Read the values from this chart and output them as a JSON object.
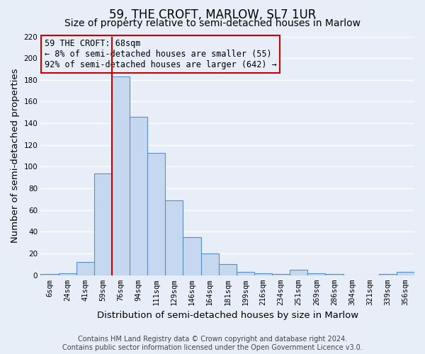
{
  "title": "59, THE CROFT, MARLOW, SL7 1UR",
  "subtitle": "Size of property relative to semi-detached houses in Marlow",
  "xlabel": "Distribution of semi-detached houses by size in Marlow",
  "ylabel": "Number of semi-detached properties",
  "bar_labels": [
    "6sqm",
    "24sqm",
    "41sqm",
    "59sqm",
    "76sqm",
    "94sqm",
    "111sqm",
    "129sqm",
    "146sqm",
    "164sqm",
    "181sqm",
    "199sqm",
    "216sqm",
    "234sqm",
    "251sqm",
    "269sqm",
    "286sqm",
    "304sqm",
    "321sqm",
    "339sqm",
    "356sqm"
  ],
  "bar_values": [
    1,
    2,
    12,
    94,
    183,
    146,
    113,
    69,
    35,
    20,
    10,
    3,
    2,
    1,
    5,
    2,
    1,
    0,
    0,
    1,
    3
  ],
  "bar_color": "#c5d8f0",
  "bar_edge_color": "#5b8ec4",
  "vline_x_index": 3.5,
  "vline_color": "#cc0000",
  "annotation_line1": "59 THE CROFT: 68sqm",
  "annotation_line2": "← 8% of semi-detached houses are smaller (55)",
  "annotation_line3": "92% of semi-detached houses are larger (642) →",
  "annotation_box_color": "#cc0000",
  "ylim": [
    0,
    220
  ],
  "yticks": [
    0,
    20,
    40,
    60,
    80,
    100,
    120,
    140,
    160,
    180,
    200,
    220
  ],
  "footer_line1": "Contains HM Land Registry data © Crown copyright and database right 2024.",
  "footer_line2": "Contains public sector information licensed under the Open Government Licence v3.0.",
  "bg_color": "#e8eef7",
  "grid_color": "#ffffff",
  "title_fontsize": 12,
  "subtitle_fontsize": 10,
  "axis_label_fontsize": 9.5,
  "tick_fontsize": 7.5,
  "annotation_fontsize": 8.5,
  "footer_fontsize": 7.0
}
